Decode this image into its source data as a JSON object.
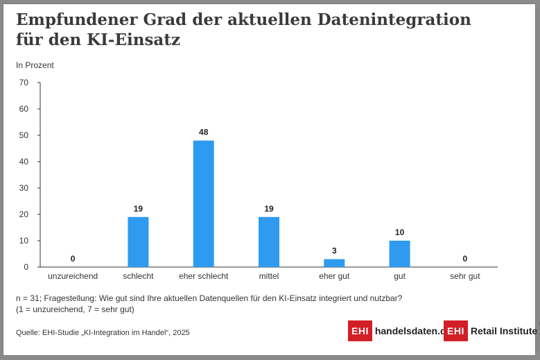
{
  "title_line1": "Empfundener Grad der aktuellen Datenintegration",
  "title_line2": "für den KI-Einsatz",
  "unit_label": "In Prozent",
  "note_line1": "n = 31; Fragestellung: Wie gut sind Ihre aktuellen Datenquellen für den KI-Einsatz integriert und nutzbar?",
  "note_line2": "(1 = unzureichend, 7 = sehr gut)",
  "source": "Quelle: EHI-Studie „KI-Integration im Handel“, 2025",
  "logo1": {
    "box": "EHI",
    "text": "handelsdaten.de"
  },
  "logo2": {
    "box": "EHI",
    "text": "Retail Institute",
    "mark": "®"
  },
  "colors": {
    "bar": "#2e9bf0",
    "axis": "#333333",
    "logo_red": "#d21f26"
  },
  "chart_data": {
    "type": "bar",
    "title": "Empfundener Grad der aktuellen Datenintegration für den KI-Einsatz",
    "ylabel": "In Prozent",
    "xlabel": "",
    "categories": [
      "unzureichend",
      "schlecht",
      "eher schlecht",
      "mittel",
      "eher gut",
      "gut",
      "sehr gut"
    ],
    "values": [
      0,
      19,
      48,
      19,
      3,
      10,
      0
    ],
    "ylim": [
      0,
      70
    ],
    "yticks": [
      0,
      10,
      20,
      30,
      40,
      50,
      60,
      70
    ],
    "grid": false,
    "legend": "none"
  }
}
